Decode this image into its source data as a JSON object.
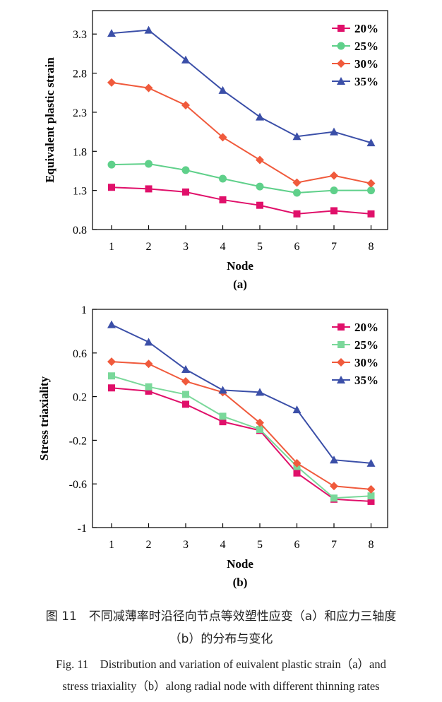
{
  "chart_data": [
    {
      "type": "line",
      "panel_label": "(a)",
      "title": "",
      "xlabel": "Node",
      "ylabel": "Equivalent plastic strain",
      "categories": [
        "1",
        "2",
        "3",
        "4",
        "5",
        "6",
        "7",
        "8"
      ],
      "ylim": [
        0.8,
        3.6
      ],
      "yticks": [
        "0.8",
        "1.3",
        "1.8",
        "2.3",
        "2.8",
        "3.3"
      ],
      "legend_position": "top-right",
      "series": [
        {
          "name": "20%",
          "color": "#e0106a",
          "marker": "square",
          "values": [
            1.34,
            1.32,
            1.28,
            1.18,
            1.11,
            1.0,
            1.04,
            1.0
          ]
        },
        {
          "name": "25%",
          "color": "#5fd08a",
          "marker": "circle",
          "values": [
            1.63,
            1.64,
            1.56,
            1.45,
            1.35,
            1.27,
            1.3,
            1.3
          ]
        },
        {
          "name": "30%",
          "color": "#f05a3c",
          "marker": "diamond",
          "values": [
            2.68,
            2.61,
            2.39,
            1.98,
            1.69,
            1.4,
            1.49,
            1.39
          ]
        },
        {
          "name": "35%",
          "color": "#3b4fa8",
          "marker": "triangle",
          "values": [
            3.31,
            3.35,
            2.97,
            2.58,
            2.24,
            1.99,
            2.05,
            1.91
          ]
        }
      ]
    },
    {
      "type": "line",
      "panel_label": "(b)",
      "title": "",
      "xlabel": "Node",
      "ylabel": "Stress triaxiality",
      "categories": [
        "1",
        "2",
        "3",
        "4",
        "5",
        "6",
        "7",
        "8"
      ],
      "ylim": [
        -1,
        1
      ],
      "yticks": [
        "-1",
        "-0.6",
        "-0.2",
        "0.2",
        "0.6",
        "1"
      ],
      "legend_position": "top-right",
      "series": [
        {
          "name": "20%",
          "color": "#e0106a",
          "marker": "square",
          "values": [
            0.28,
            0.25,
            0.13,
            -0.03,
            -0.11,
            -0.5,
            -0.74,
            -0.76
          ]
        },
        {
          "name": "25%",
          "color": "#7ad89a",
          "marker": "square",
          "values": [
            0.39,
            0.29,
            0.22,
            0.02,
            -0.1,
            -0.44,
            -0.73,
            -0.71
          ]
        },
        {
          "name": "30%",
          "color": "#f05a3c",
          "marker": "diamond",
          "values": [
            0.52,
            0.5,
            0.34,
            0.24,
            -0.04,
            -0.41,
            -0.62,
            -0.65
          ]
        },
        {
          "name": "35%",
          "color": "#3b4fa8",
          "marker": "triangle",
          "values": [
            0.86,
            0.7,
            0.45,
            0.26,
            0.24,
            0.08,
            -0.38,
            -0.41
          ]
        }
      ]
    }
  ],
  "caption": {
    "cn_line1": "图 11　不同减薄率时沿径向节点等效塑性应变（a）和应力三轴度",
    "cn_line2": "（b）的分布与变化",
    "en_line1": "Fig. 11　Distribution and variation of euivalent plastic strain（a）and",
    "en_line2": "stress triaxiality（b）along radial node with different thinning rates"
  }
}
